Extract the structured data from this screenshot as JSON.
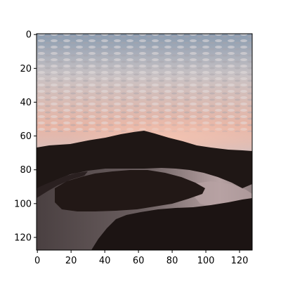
{
  "chart_data": {
    "type": "image",
    "title": "",
    "xlabel": "",
    "ylabel": "",
    "image_size": [
      128,
      128
    ],
    "xlim": [
      -0.5,
      127.5
    ],
    "ylim": [
      127.5,
      -0.5
    ],
    "xticks": [
      0,
      20,
      40,
      60,
      80,
      100,
      120
    ],
    "yticks": [
      0,
      20,
      40,
      60,
      80,
      100,
      120
    ],
    "xtick_labels": [
      "0",
      "20",
      "40",
      "60",
      "80",
      "100",
      "120"
    ],
    "ytick_labels": [
      "0",
      "20",
      "40",
      "60",
      "80",
      "100",
      "120"
    ],
    "grid": false,
    "legend": "none"
  },
  "image_content": {
    "subject": "sunset-landscape",
    "colors": {
      "sky_top": "#8b9cb0",
      "sky_clouds": "#c9c2c4",
      "horizon_glow": "#e8b5a5",
      "hills": "#1f1715",
      "water": "#6b5f60",
      "water_highlight": "#b7a2a3",
      "island": "#221816",
      "foreground": "#1c1413"
    }
  }
}
